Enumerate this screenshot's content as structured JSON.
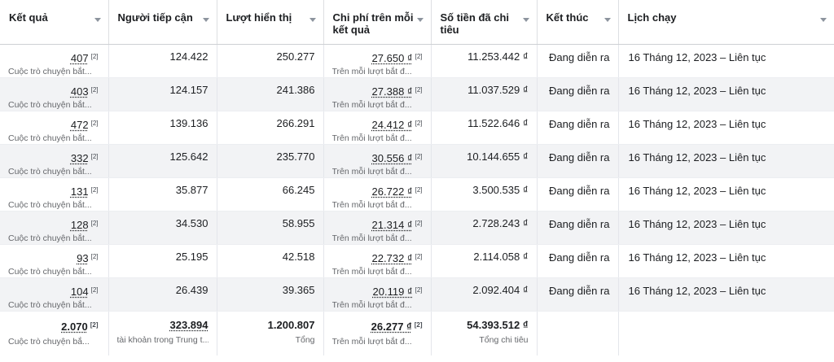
{
  "headers": [
    {
      "label": "Kết quả"
    },
    {
      "label": "Người tiếp cận"
    },
    {
      "label": "Lượt hiển thị"
    },
    {
      "label": "Chi phí trên mỗi kết quả"
    },
    {
      "label": "Số tiền đã chi tiêu"
    },
    {
      "label": "Kết thúc"
    },
    {
      "label": "Lịch chạy"
    }
  ],
  "rows": [
    {
      "results": "407",
      "results_sub": "Cuộc trò chuyện bắt...",
      "reach": "124.422",
      "impressions": "250.277",
      "cpr": "27.650 ₫",
      "cpr_sub": "Trên mỗi lượt bắt đ...",
      "spent": "11.253.442 ₫",
      "ends": "Đang diễn ra",
      "schedule": "16 Tháng 12, 2023 – Liên tục"
    },
    {
      "results": "403",
      "results_sub": "Cuộc trò chuyện bắt...",
      "reach": "124.157",
      "impressions": "241.386",
      "cpr": "27.388 ₫",
      "cpr_sub": "Trên mỗi lượt bắt đ...",
      "spent": "11.037.529 ₫",
      "ends": "Đang diễn ra",
      "schedule": "16 Tháng 12, 2023 – Liên tục"
    },
    {
      "results": "472",
      "results_sub": "Cuộc trò chuyện bắt...",
      "reach": "139.136",
      "impressions": "266.291",
      "cpr": "24.412 ₫",
      "cpr_sub": "Trên mỗi lượt bắt đ...",
      "spent": "11.522.646 ₫",
      "ends": "Đang diễn ra",
      "schedule": "16 Tháng 12, 2023 – Liên tục"
    },
    {
      "results": "332",
      "results_sub": "Cuộc trò chuyện bắt...",
      "reach": "125.642",
      "impressions": "235.770",
      "cpr": "30.556 ₫",
      "cpr_sub": "Trên mỗi lượt bắt đ...",
      "spent": "10.144.655 ₫",
      "ends": "Đang diễn ra",
      "schedule": "16 Tháng 12, 2023 – Liên tục"
    },
    {
      "results": "131",
      "results_sub": "Cuộc trò chuyện bắt...",
      "reach": "35.877",
      "impressions": "66.245",
      "cpr": "26.722 ₫",
      "cpr_sub": "Trên mỗi lượt bắt đ...",
      "spent": "3.500.535 ₫",
      "ends": "Đang diễn ra",
      "schedule": "16 Tháng 12, 2023 – Liên tục"
    },
    {
      "results": "128",
      "results_sub": "Cuộc trò chuyện bắt...",
      "reach": "34.530",
      "impressions": "58.955",
      "cpr": "21.314 ₫",
      "cpr_sub": "Trên mỗi lượt bắt đ...",
      "spent": "2.728.243 ₫",
      "ends": "Đang diễn ra",
      "schedule": "16 Tháng 12, 2023 – Liên tục"
    },
    {
      "results": "93",
      "results_sub": "Cuộc trò chuyện bắt...",
      "reach": "25.195",
      "impressions": "42.518",
      "cpr": "22.732 ₫",
      "cpr_sub": "Trên mỗi lượt bắt đ...",
      "spent": "2.114.058 ₫",
      "ends": "Đang diễn ra",
      "schedule": "16 Tháng 12, 2023 – Liên tục"
    },
    {
      "results": "104",
      "results_sub": "Cuộc trò chuyện bắt...",
      "reach": "26.439",
      "impressions": "39.365",
      "cpr": "20.119 ₫",
      "cpr_sub": "Trên mỗi lượt bắt đ...",
      "spent": "2.092.404 ₫",
      "ends": "Đang diễn ra",
      "schedule": "16 Tháng 12, 2023 – Liên tục"
    }
  ],
  "ref_marker": "[2]",
  "totals": {
    "results": "2.070",
    "results_sub": "Cuộc trò chuyện bắ...",
    "reach": "323.894",
    "reach_sub": "tài khoản trong Trung t...",
    "impressions": "1.200.807",
    "impressions_sub": "Tổng",
    "cpr": "26.277 ₫",
    "cpr_sub": "Trên mỗi lượt bắt đ...",
    "spent": "54.393.512 ₫",
    "spent_sub": "Tổng chi tiêu"
  },
  "colors": {
    "header_border": "#ced0d4",
    "row_alt": "#f2f3f5",
    "muted_text": "#65676b"
  }
}
